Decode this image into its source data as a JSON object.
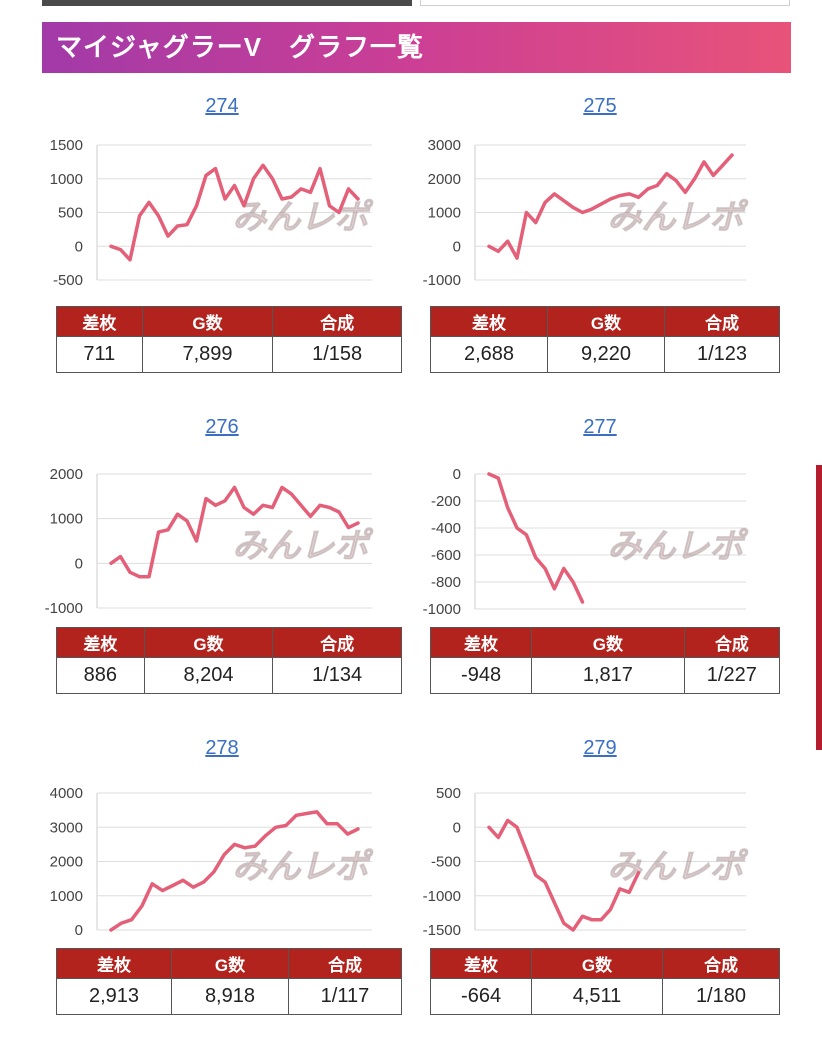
{
  "header": {
    "title": "マイジャグラーV　グラフ一覧"
  },
  "watermark": {
    "text": "みんレポ"
  },
  "colors": {
    "line": "#e45f78",
    "table_header": "#b3231e",
    "grid": "#dddddd",
    "link": "#3a6fc4"
  },
  "columns": {
    "diff": "差枚",
    "games": "G数",
    "combined": "合成"
  },
  "machines": [
    {
      "number": "274",
      "stats": {
        "diff": "711",
        "games": "7,899",
        "combined": "1/158"
      }
    },
    {
      "number": "275",
      "stats": {
        "diff": "2,688",
        "games": "9,220",
        "combined": "1/123"
      }
    },
    {
      "number": "276",
      "stats": {
        "diff": "886",
        "games": "8,204",
        "combined": "1/134"
      }
    },
    {
      "number": "277",
      "stats": {
        "diff": "-948",
        "games": "1,817",
        "combined": "1/227"
      }
    },
    {
      "number": "278",
      "stats": {
        "diff": "2,913",
        "games": "8,918",
        "combined": "1/117"
      }
    },
    {
      "number": "279",
      "stats": {
        "diff": "-664",
        "games": "4,511",
        "combined": "1/180"
      }
    }
  ],
  "chart_data": [
    {
      "type": "line",
      "ylim": [
        -500,
        1500
      ],
      "yticks": [
        "1500",
        "1000",
        "500",
        "0",
        "-500"
      ],
      "values": [
        0,
        -50,
        -200,
        450,
        650,
        450,
        150,
        300,
        320,
        600,
        1050,
        1150,
        700,
        900,
        600,
        1000,
        1200,
        1000,
        700,
        730,
        850,
        800,
        1150,
        600,
        500,
        850,
        700
      ]
    },
    {
      "type": "line",
      "ylim": [
        -1000,
        3000
      ],
      "yticks": [
        "3000",
        "2000",
        "1000",
        "0",
        "-1000"
      ],
      "values": [
        0,
        -150,
        150,
        -350,
        1000,
        700,
        1300,
        1550,
        1350,
        1150,
        1000,
        1100,
        1250,
        1400,
        1500,
        1550,
        1450,
        1700,
        1800,
        2150,
        1950,
        1600,
        2000,
        2500,
        2100,
        2400,
        2700
      ]
    },
    {
      "type": "line",
      "ylim": [
        -1000,
        2000
      ],
      "yticks": [
        "2000",
        "1000",
        "0",
        "-1000"
      ],
      "values": [
        0,
        150,
        -200,
        -300,
        -300,
        700,
        750,
        1100,
        950,
        500,
        1450,
        1300,
        1400,
        1700,
        1250,
        1100,
        1300,
        1250,
        1700,
        1550,
        1300,
        1050,
        1300,
        1250,
        1150,
        800,
        900
      ]
    },
    {
      "type": "line",
      "ylim": [
        -1000,
        0
      ],
      "yticks": [
        "0",
        "-200",
        "-400",
        "-600",
        "-800",
        "-1000"
      ],
      "xcount": 27,
      "values": [
        0,
        -30,
        -250,
        -400,
        -450,
        -620,
        -700,
        -850,
        -700,
        -800,
        -948
      ]
    },
    {
      "type": "line",
      "ylim": [
        0,
        4000
      ],
      "yticks": [
        "4000",
        "3000",
        "2000",
        "1000",
        "0"
      ],
      "values": [
        0,
        200,
        300,
        700,
        1350,
        1150,
        1300,
        1450,
        1250,
        1400,
        1700,
        2200,
        2500,
        2400,
        2450,
        2750,
        3000,
        3050,
        3350,
        3400,
        3450,
        3100,
        3100,
        2800,
        2950
      ]
    },
    {
      "type": "line",
      "ylim": [
        -1500,
        500
      ],
      "yticks": [
        "500",
        "0",
        "-500",
        "-1000",
        "-1500"
      ],
      "xcount": 27,
      "values": [
        0,
        -150,
        100,
        0,
        -350,
        -700,
        -800,
        -1100,
        -1400,
        -1500,
        -1300,
        -1350,
        -1350,
        -1200,
        -900,
        -950,
        -664
      ]
    }
  ]
}
